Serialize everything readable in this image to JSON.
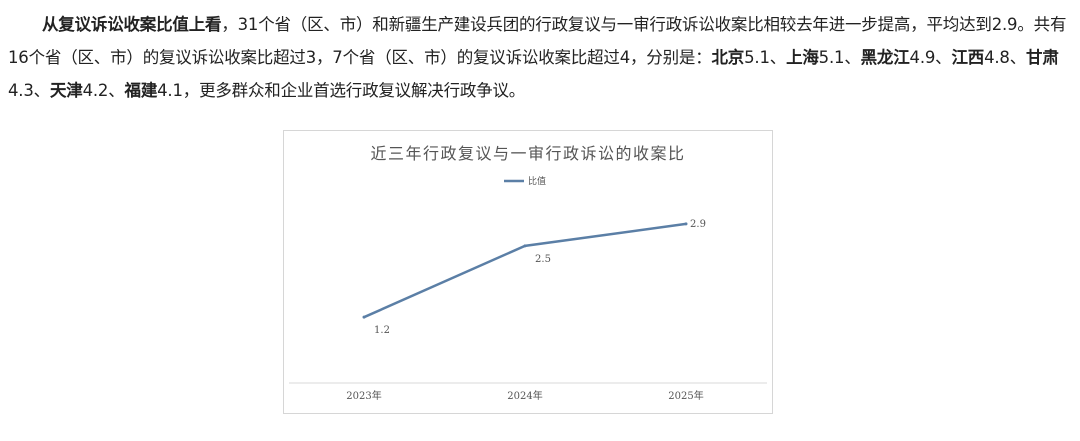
{
  "paragraph": {
    "s1_lead": "从复议诉讼收案比值上看",
    "s1_text": "，31个省（区、市）和新疆生产建设兵团的行政复议与一审行政诉讼收案比相较去年进一步提高，平均达到2.9。共有16个省（区、市）的复议诉讼收案比超过3，7个省（区、市）的复议诉讼收案比超过4，分别是：",
    "regions": [
      {
        "name": "北京",
        "value": "5.1",
        "sep": "、"
      },
      {
        "name": "上海",
        "value": "5.1",
        "sep": "、"
      },
      {
        "name": "黑龙江",
        "value": "4.9",
        "sep": "、"
      },
      {
        "name": "江西",
        "value": "4.8",
        "sep": "、"
      },
      {
        "name": "甘肃",
        "value": "4.3",
        "sep": "、"
      },
      {
        "name": "天津",
        "value": "4.2",
        "sep": "、"
      },
      {
        "name": "福建",
        "value": "4.1",
        "sep": "，"
      }
    ],
    "s_end": "更多群众和企业首选行政复议解决行政争议。"
  },
  "chart_data": {
    "type": "line",
    "title": "近三年行政复议与一审行政诉讼的收案比",
    "x": [
      "2023年",
      "2024年",
      "2025年"
    ],
    "series": [
      {
        "name": "比值",
        "values": [
          1.2,
          2.5,
          2.9
        ],
        "labels": [
          "1.2",
          "2.5",
          "2.9"
        ],
        "color": "#5b7fa6"
      }
    ],
    "ylim": [
      0,
      3.5
    ],
    "grid": false,
    "legend": "top-center"
  }
}
